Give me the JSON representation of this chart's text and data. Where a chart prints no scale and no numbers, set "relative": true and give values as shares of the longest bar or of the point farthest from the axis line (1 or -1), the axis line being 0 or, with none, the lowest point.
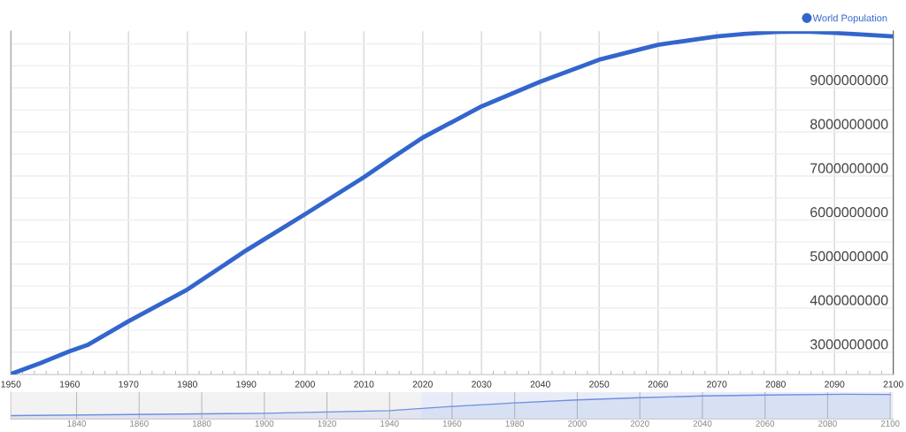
{
  "chart_data": [
    {
      "type": "line",
      "x": [
        1950,
        1955,
        1960,
        1963,
        1970,
        1980,
        1990,
        2000,
        2010,
        2015,
        2020,
        2030,
        2040,
        2050,
        2060,
        2070,
        2075,
        2080,
        2085,
        2090,
        2100
      ],
      "series": [
        {
          "name": "World Population",
          "color": "#3366cc",
          "values": [
            2500000000,
            2750000000,
            3020000000,
            3160000000,
            3700000000,
            4420000000,
            5310000000,
            6130000000,
            6970000000,
            7430000000,
            7870000000,
            8580000000,
            9140000000,
            9640000000,
            9980000000,
            10170000000,
            10230000000,
            10270000000,
            10280000000,
            10250000000,
            10170000000
          ]
        }
      ],
      "xlim": [
        1950,
        2100
      ],
      "xticks": [
        1950,
        1960,
        1970,
        1980,
        1990,
        2000,
        2010,
        2020,
        2030,
        2040,
        2050,
        2060,
        2070,
        2080,
        2090,
        2100
      ],
      "ylim": [
        2490000000,
        10290000000
      ],
      "yticks": [
        {
          "value": 3000000000,
          "label": "3000000000"
        },
        {
          "value": 3500000000,
          "label": null
        },
        {
          "value": 4000000000,
          "label": "4000000000"
        },
        {
          "value": 4500000000,
          "label": null
        },
        {
          "value": 5000000000,
          "label": "5000000000"
        },
        {
          "value": 5500000000,
          "label": null
        },
        {
          "value": 6000000000,
          "label": "6000000000"
        },
        {
          "value": 6500000000,
          "label": null
        },
        {
          "value": 7000000000,
          "label": "7000000000"
        },
        {
          "value": 7500000000,
          "label": null
        },
        {
          "value": 8000000000,
          "label": "8000000000"
        },
        {
          "value": 8500000000,
          "label": null
        },
        {
          "value": 9000000000,
          "label": "9000000000"
        },
        {
          "value": 9500000000,
          "label": null
        },
        {
          "value": 10000000000,
          "label": null
        }
      ],
      "grid": true,
      "legend": "top right",
      "marker": "none",
      "line_style": "solid"
    },
    {
      "type": "area",
      "relative": true,
      "x": [
        1819,
        1900,
        1940,
        1960,
        1980,
        2000,
        2020,
        2040,
        2060,
        2085,
        2100
      ],
      "series": [
        {
          "color": "#6f8fe0",
          "values": [
            0.14,
            0.23,
            0.34,
            0.51,
            0.65,
            0.77,
            0.86,
            0.93,
            0.97,
            1,
            0.99
          ]
        }
      ],
      "xlim": [
        1819,
        2101
      ],
      "xticks": [
        1840,
        1860,
        1880,
        1900,
        1920,
        1940,
        1960,
        1980,
        2000,
        2020,
        2040,
        2060,
        2080,
        2100
      ],
      "bands": [
        {
          "axis": "x",
          "from": 1819,
          "to": 1950,
          "color": "#f2f2f2"
        },
        {
          "axis": "x",
          "from": 1950,
          "to": 2101,
          "color": "#e8ecf8"
        }
      ],
      "grid": "x"
    }
  ]
}
